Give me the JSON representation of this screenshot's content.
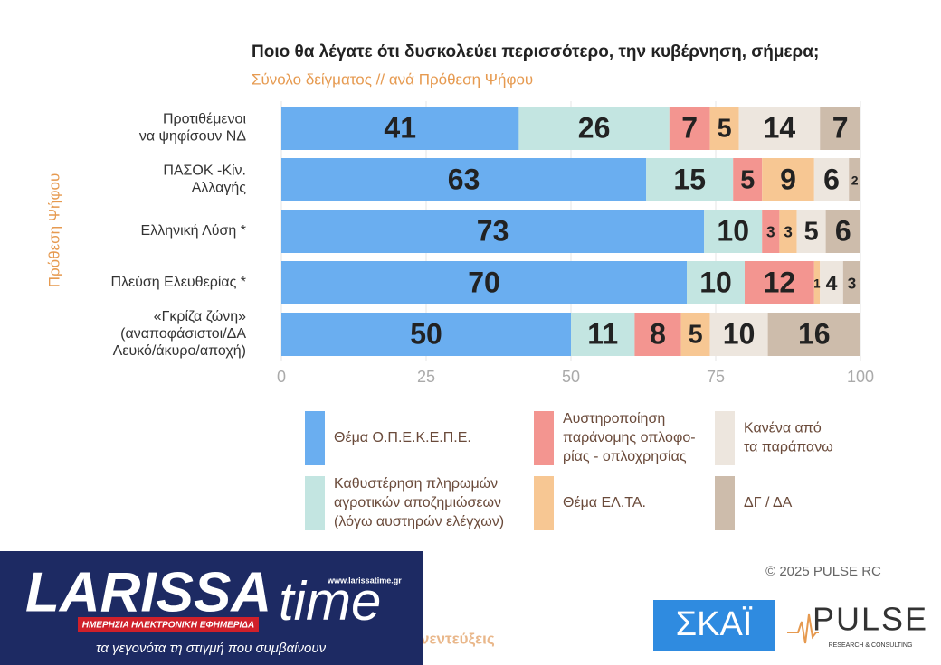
{
  "chart_data": {
    "type": "stacked-barh",
    "title": "Ποιο θα λέγατε ότι δυσκολεύει περισσότερο, την κυβέρνηση, σήμερα;",
    "subtitle": "Σύνολο δείγματος // ανά Πρόθεση Ψήφου",
    "y_label": "Πρόθεση Ψήφου",
    "categories": [
      [
        "Προτιθέμενοι",
        "να ψηφίσουν ΝΔ"
      ],
      [
        "ΠΑΣΟΚ -Κίν.",
        "Αλλαγής"
      ],
      [
        "Ελληνική Λύση *"
      ],
      [
        "Πλεύση Ελευθερίας *"
      ],
      [
        "«Γκρίζα ζώνη»",
        "(αναποφάσιστοι/ΔΑ",
        "Λευκό/άκυρο/αποχή)"
      ]
    ],
    "series": [
      {
        "name": [
          "Θέμα Ο.Π.Ε.Κ.Ε.Π.Ε."
        ],
        "color": "#6aaef0",
        "values": [
          41,
          63,
          73,
          70,
          50
        ]
      },
      {
        "name": [
          "Καθυστέρηση πληρωμών",
          "αγροτικών αποζημιώσεων",
          "(λόγω αυστηρών ελέγχων)"
        ],
        "color": "#c3e5e1",
        "values": [
          26,
          15,
          10,
          10,
          11
        ]
      },
      {
        "name": [
          "Αυστηροποίηση",
          "παράνομης οπλοφο-",
          "ρίας - οπλοχρησίας"
        ],
        "color": "#f39590",
        "values": [
          7,
          5,
          3,
          12,
          8
        ]
      },
      {
        "name": [
          "Θέμα ΕΛ.ΤΑ."
        ],
        "color": "#f7c793",
        "values": [
          5,
          9,
          3,
          1,
          5
        ]
      },
      {
        "name": [
          "Κανένα από",
          "τα παράπανω"
        ],
        "color": "#ede6de",
        "values": [
          14,
          6,
          5,
          4,
          10
        ]
      },
      {
        "name": [
          "ΔΓ / ΔΑ"
        ],
        "color": "#cdbcab",
        "values": [
          7,
          2,
          6,
          3,
          16
        ]
      }
    ],
    "xlim": [
      0,
      100
    ],
    "xticks": [
      0,
      25,
      50,
      75,
      100
    ],
    "grid": true
  },
  "footer": {
    "copyright": "©  2025  PULSE RC",
    "partial_text": "νεντεύξεις",
    "skai_logo": "ΣΚΑΪ",
    "pulse_logo": "PULSE",
    "pulse_tagline": "RESEARCH & CONSULTING",
    "larissa_logo": "LARISSA",
    "larissa_logo_2": "time",
    "larissa_url": "www.larissatime.gr",
    "larissa_banner": "ΗΜΕΡΗΣΙΑ ΗΛΕΚΤΡΟΝΙΚΗ ΕΦΗΜΕΡΙΔΑ",
    "larissa_slogan": "τα γεγονότα τη στιγμή που συμβαίνουν"
  }
}
